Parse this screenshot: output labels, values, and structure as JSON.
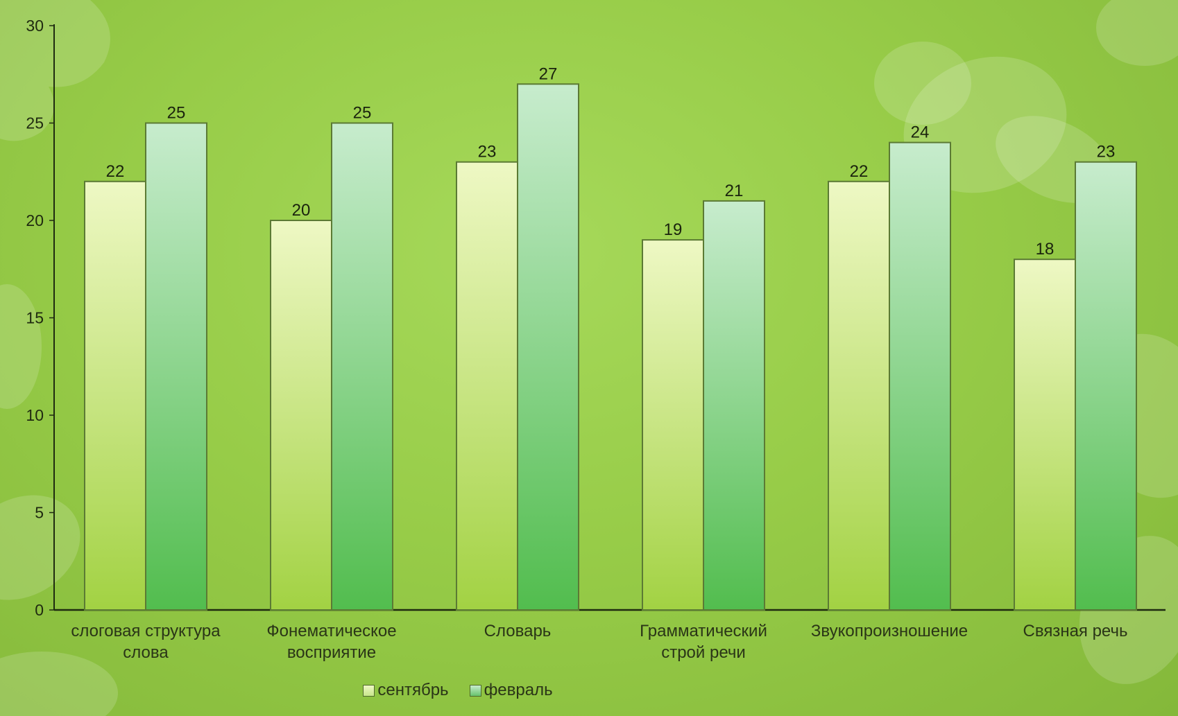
{
  "chart_data": {
    "type": "bar",
    "categories": [
      [
        "слоговая структура",
        "слова"
      ],
      [
        "Фонематическое",
        "восприятие"
      ],
      [
        "Словарь"
      ],
      [
        "Грамматический",
        "строй речи"
      ],
      [
        "Звукопроизношение"
      ],
      [
        "Связная речь"
      ]
    ],
    "series": [
      {
        "name": "сентябрь",
        "values": [
          22,
          20,
          23,
          19,
          22,
          18
        ],
        "color_top": "#eef8c4",
        "color_bottom": "#a2d243"
      },
      {
        "name": "февраль",
        "values": [
          25,
          25,
          27,
          21,
          24,
          23
        ],
        "color_top": "#c7eccd",
        "color_bottom": "#52bd4e"
      }
    ],
    "y_ticks": [
      "0",
      "5",
      "10",
      "15",
      "20",
      "25",
      "30"
    ],
    "ylim": [
      0,
      30
    ],
    "grid": false,
    "data_labels": true,
    "legend_position": "bottom"
  },
  "colors": {
    "background": "#97cc48",
    "axis": "#1e2a10",
    "bar_border": "#5b7a34"
  }
}
